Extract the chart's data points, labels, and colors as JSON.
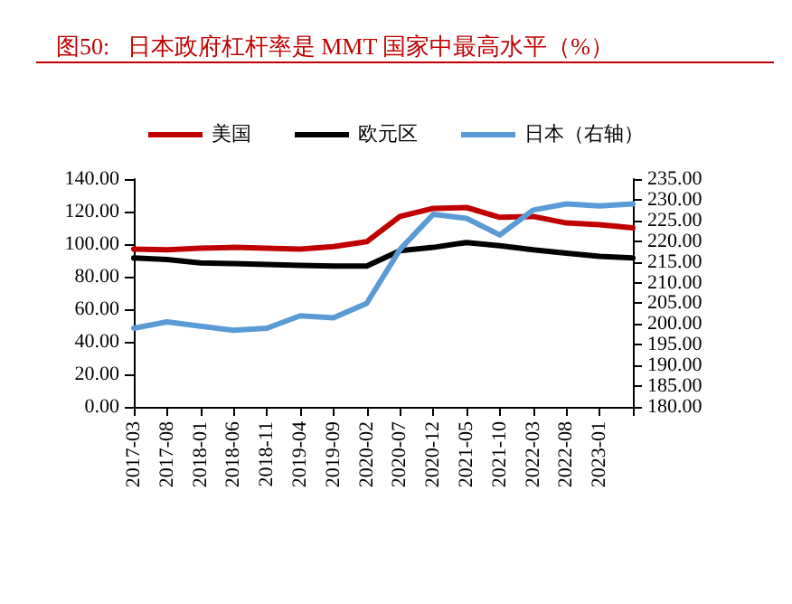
{
  "chart_data": {
    "type": "line",
    "title": "图50:   日本政府杠杆率是 MMT 国家中最高水平（%）",
    "categories": [
      "2017-03",
      "2017-08",
      "2018-01",
      "2018-06",
      "2018-11",
      "2019-04",
      "2019-09",
      "2020-02",
      "2020-07",
      "2020-12",
      "2021-05",
      "2021-10",
      "2022-03",
      "2022-08",
      "2023-01",
      null
    ],
    "series": [
      {
        "name": "美国",
        "color": "#c00000",
        "values": [
          97,
          96.5,
          97.5,
          98,
          97.5,
          97,
          98.5,
          101.5,
          117,
          122,
          122.5,
          116.5,
          117,
          113,
          112,
          110
        ]
      },
      {
        "name": "欧元区",
        "color": "#000000",
        "values": [
          91.5,
          90.5,
          88.5,
          88,
          87.5,
          87,
          86.5,
          86.5,
          96,
          98,
          101,
          99,
          96.5,
          94.5,
          92.5,
          91.5
        ]
      },
      {
        "name": "日本（右轴）",
        "color": "#5b9bd5",
        "axis": "y2",
        "values": [
          199,
          200.5,
          199.5,
          198.5,
          199,
          202,
          201.5,
          205,
          218,
          226.5,
          225.5,
          221.5,
          227.5,
          229,
          228.5,
          229
        ]
      }
    ],
    "ylim": [
      0,
      140
    ],
    "yticks": [
      {
        "value": 0,
        "label": "0.00"
      },
      {
        "value": 20,
        "label": "20.00"
      },
      {
        "value": 40,
        "label": "40.00"
      },
      {
        "value": 60,
        "label": "60.00"
      },
      {
        "value": 80,
        "label": "80.00"
      },
      {
        "value": 100,
        "label": "100.00"
      },
      {
        "value": 120,
        "label": "120.00"
      },
      {
        "value": 140,
        "label": "140.00"
      }
    ],
    "y2lim": [
      180,
      235
    ],
    "y2ticks": [
      {
        "value": 180,
        "label": "180.00"
      },
      {
        "value": 185,
        "label": "185.00"
      },
      {
        "value": 190,
        "label": "190.00"
      },
      {
        "value": 195,
        "label": "195.00"
      },
      {
        "value": 200,
        "label": "200.00"
      },
      {
        "value": 205,
        "label": "205.00"
      },
      {
        "value": 210,
        "label": "210.00"
      },
      {
        "value": 215,
        "label": "215.00"
      },
      {
        "value": 220,
        "label": "220.00"
      },
      {
        "value": 225,
        "label": "225.00"
      },
      {
        "value": 230,
        "label": "230.00"
      },
      {
        "value": 235,
        "label": "235.00"
      }
    ],
    "grid": false,
    "legend": "top",
    "marker": "none",
    "line_style": "solid"
  }
}
